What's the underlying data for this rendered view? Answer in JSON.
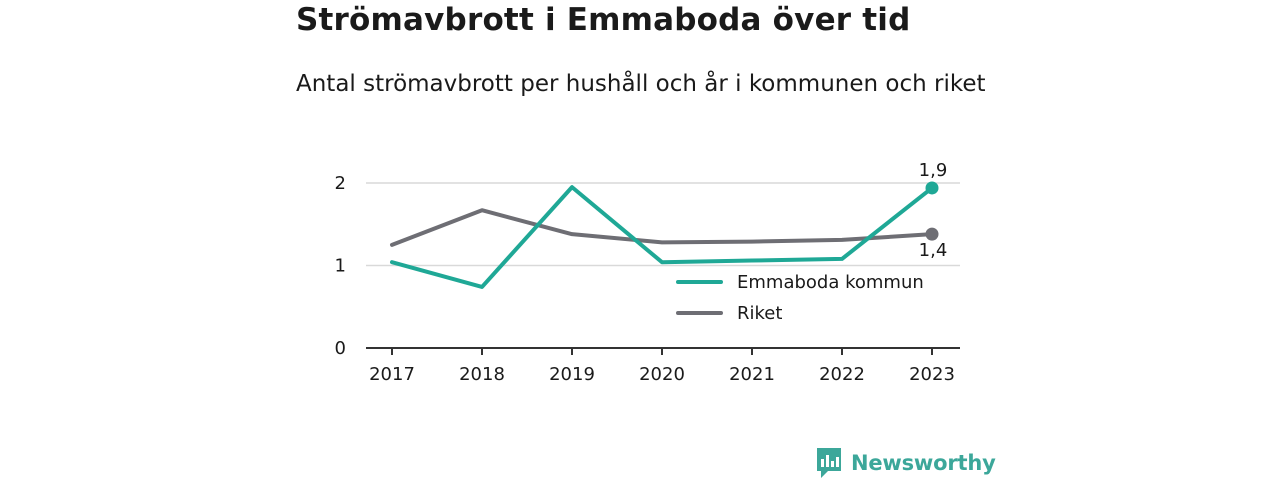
{
  "title": "Strömavbrott i Emmaboda över tid",
  "subtitle": "Antal strömavbrott per hushåll och år i kommunen och riket",
  "brand": "Newsworthy",
  "colors": {
    "emmaboda": "#1fa896",
    "riket": "#6e6e74",
    "grid": "#d9d9d9",
    "axis": "#333333"
  },
  "chart_data": {
    "type": "line",
    "x": [
      "2017",
      "2018",
      "2019",
      "2020",
      "2021",
      "2022",
      "2023"
    ],
    "ylim": [
      0,
      2
    ],
    "yticks": [
      "0",
      "1",
      "2"
    ],
    "grid": true,
    "legend_position": "bottom-right",
    "series": [
      {
        "name": "Emmaboda kommun",
        "color": "#1fa896",
        "values": [
          1.04,
          0.74,
          1.95,
          1.04,
          1.06,
          1.08,
          1.94
        ],
        "end_label": "1,9"
      },
      {
        "name": "Riket",
        "color": "#6e6e74",
        "values": [
          1.25,
          1.67,
          1.38,
          1.28,
          1.29,
          1.31,
          1.38
        ],
        "end_label": "1,4"
      }
    ]
  }
}
